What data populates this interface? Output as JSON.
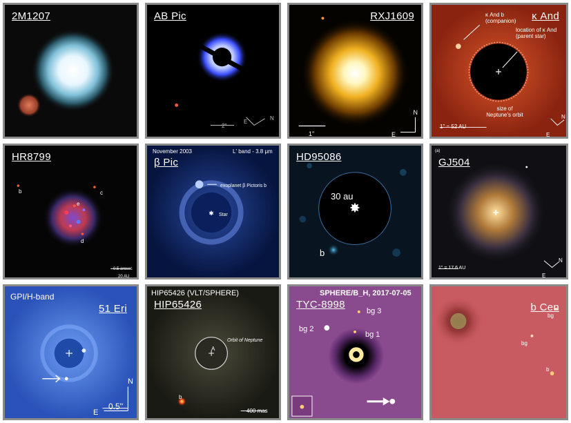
{
  "panels": {
    "p1": {
      "title": "2M1207"
    },
    "p2": {
      "title": "AB Pic",
      "scale": "2\"",
      "dir_e": "E",
      "dir_n": "N"
    },
    "p3": {
      "title": "RXJ1609",
      "scale": "1\"",
      "dir_n": "N",
      "dir_e": "E"
    },
    "p4": {
      "title": "κ And",
      "ann_companion": "κ And b (companion)",
      "ann_star": "location of κ And (parent star)",
      "ann_orbit": "size of Neptune's orbit",
      "scale": "1\" = 52 AU",
      "dir_n": "N",
      "dir_e": "E"
    },
    "p5": {
      "title": "HR8799",
      "lbl_b": "b",
      "lbl_c": "c",
      "lbl_d": "d",
      "lbl_e": "e",
      "scale_top": "0.5 arcsec",
      "scale_bottom": "20 AU"
    },
    "p6": {
      "title": "β Pic",
      "date": "November 2003",
      "band": "L' band - 3.8 μm",
      "planet": "exoplanet β Pictoris b",
      "star": "Star"
    },
    "p7": {
      "title": "HD95086",
      "dist": "30 au",
      "lbl_b": "b"
    },
    "p8": {
      "title": "GJ504",
      "corner": "(a)",
      "scale": "1\" = 17.6 AU",
      "dir_n": "N",
      "dir_e": "E"
    },
    "p9": {
      "header": "GPI/H-band",
      "title": "51 Eri",
      "dir_n": "N",
      "dir_e": "E",
      "scale": "0.5''"
    },
    "p10": {
      "header": "HIP65426 (VLT/SPHERE)",
      "title": "HIP65426",
      "orbit": "Orbit of Neptune",
      "star": "A",
      "lbl_b": "b",
      "scale": "400 mas"
    },
    "p11": {
      "header": "SPHERE/B_H, 2017-07-05",
      "title": "TYC-8998",
      "bg1": "bg 1",
      "bg2": "bg 2",
      "bg3": "bg 3"
    },
    "p12": {
      "title": "b Cen",
      "bg_a": "bg",
      "bg_b": "bg",
      "lbl_b": "b"
    }
  },
  "colors": {
    "border": "#8a8a8a",
    "kand_bg": "#b3361a",
    "eri_bg": "#2f5fc4",
    "tyc_bg": "#8a4a8e",
    "bcen_bg": "#c85a62"
  }
}
